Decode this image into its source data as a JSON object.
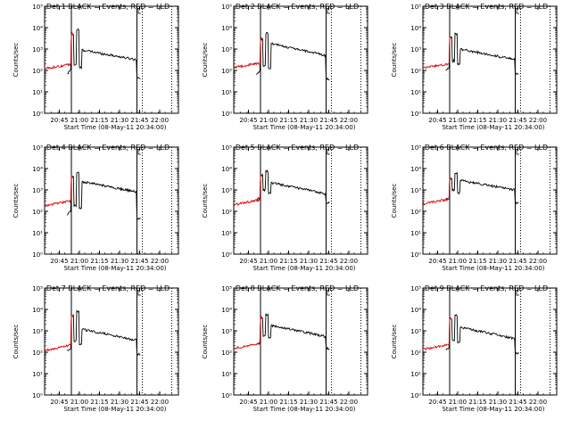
{
  "chart_data": [
    {
      "type": "line",
      "title": "Det 1 BLACK = Events, RED = LLD",
      "xlabel": "Start Time (08-May-11 20:34:00)",
      "ylabel": "Counts/sec",
      "yscale": "log",
      "ylim": [
        1,
        100000
      ],
      "xticks": [
        "20:45",
        "21:00",
        "21:15",
        "21:30",
        "21:45",
        "22:00"
      ],
      "yticks": [
        "10⁰",
        "10¹",
        "10²",
        "10³",
        "10⁴",
        "10⁵"
      ],
      "series": [
        {
          "name": "Events",
          "color": "#000000",
          "plateau": 900,
          "decay": 0.35,
          "peaks": [
            5000,
            8000
          ],
          "low": 45
        },
        {
          "name": "LLD",
          "color": "#dd0000",
          "plateau": 1100,
          "decay": 0.35,
          "peaks": [
            5000,
            8000
          ],
          "pre": [
            120,
            200
          ],
          "post": 180
        }
      ]
    },
    {
      "type": "line",
      "title": "Det 2 BLACK = Events, RED = LLD",
      "xlabel": "Start Time (08-May-11 20:34:00)",
      "ylabel": "Counts/sec",
      "yscale": "log",
      "ylim": [
        1,
        100000
      ],
      "xticks": [
        "20:45",
        "21:00",
        "21:15",
        "21:30",
        "21:45",
        "22:00"
      ],
      "yticks": [
        "10⁰",
        "10¹",
        "10²",
        "10³",
        "10⁴",
        "10⁵"
      ],
      "series": [
        {
          "name": "Events",
          "color": "#000000",
          "plateau": 1800,
          "decay": 0.28,
          "peaks": [
            3000,
            5500
          ],
          "low": 40
        },
        {
          "name": "LLD",
          "color": "#dd0000",
          "plateau": 2000,
          "decay": 0.25,
          "peaks": [
            3000,
            5500
          ],
          "pre": [
            140,
            220
          ],
          "post": 180
        }
      ]
    },
    {
      "type": "line",
      "title": "Det 3 BLACK = Events, RED = LLD",
      "xlabel": "Start Time (08-May-11 20:34:00)",
      "ylabel": "Counts/sec",
      "yscale": "log",
      "ylim": [
        1,
        100000
      ],
      "xticks": [
        "20:45",
        "21:00",
        "21:15",
        "21:30",
        "21:45",
        "22:00"
      ],
      "yticks": [
        "10⁰",
        "10¹",
        "10²",
        "10³",
        "10⁴",
        "10⁵"
      ],
      "series": [
        {
          "name": "Events",
          "color": "#000000",
          "plateau": 1000,
          "decay": 0.32,
          "peaks": [
            3500,
            5000
          ],
          "low": 70
        },
        {
          "name": "LLD",
          "color": "#dd0000",
          "plateau": 1200,
          "decay": 0.3,
          "peaks": [
            3500,
            5000
          ],
          "pre": [
            130,
            210
          ],
          "post": 220
        }
      ]
    },
    {
      "type": "line",
      "title": "Det 4 BLACK = Events, RED = LLD",
      "xlabel": "Start Time (08-May-11 20:34:00)",
      "ylabel": "Counts/sec",
      "yscale": "log",
      "ylim": [
        1,
        100000
      ],
      "xticks": [
        "20:45",
        "21:00",
        "21:15",
        "21:30",
        "21:45",
        "22:00"
      ],
      "yticks": [
        "10⁰",
        "10¹",
        "10²",
        "10³",
        "10⁴",
        "10⁵"
      ],
      "series": [
        {
          "name": "Events",
          "color": "#000000",
          "plateau": 2500,
          "decay": 0.32,
          "peaks": [
            4000,
            7000
          ],
          "low": 45
        },
        {
          "name": "LLD",
          "color": "#dd0000",
          "plateau": 2800,
          "decay": 0.3,
          "peaks": [
            4000,
            7000
          ],
          "pre": [
            180,
            320
          ],
          "post": 180
        }
      ]
    },
    {
      "type": "line",
      "title": "Det 5 BLACK = Events, RED = LLD",
      "xlabel": "Start Time (08-May-11 20:34:00)",
      "ylabel": "Counts/sec",
      "yscale": "log",
      "ylim": [
        1,
        100000
      ],
      "xticks": [
        "20:45",
        "21:00",
        "21:15",
        "21:30",
        "21:45",
        "22:00"
      ],
      "yticks": [
        "10⁰",
        "10¹",
        "10²",
        "10³",
        "10⁴",
        "10⁵"
      ],
      "series": [
        {
          "name": "Events",
          "color": "#000000",
          "plateau": 2200,
          "decay": 0.3,
          "peaks": [
            5000,
            7500
          ],
          "low": 250
        },
        {
          "name": "LLD",
          "color": "#dd0000",
          "plateau": 2500,
          "decay": 0.28,
          "peaks": [
            5000,
            7500
          ],
          "pre": [
            200,
            350
          ],
          "post": 250
        }
      ]
    },
    {
      "type": "line",
      "title": "Det 6 BLACK = Events, RED = LLD",
      "xlabel": "Start Time (08-May-11 20:34:00)",
      "ylabel": "Counts/sec",
      "yscale": "log",
      "ylim": [
        1,
        100000
      ],
      "xticks": [
        "20:45",
        "21:00",
        "21:15",
        "21:30",
        "21:45",
        "22:00"
      ],
      "yticks": [
        "10⁰",
        "10¹",
        "10²",
        "10³",
        "10⁴",
        "10⁵"
      ],
      "series": [
        {
          "name": "Events",
          "color": "#000000",
          "plateau": 2800,
          "decay": 0.35,
          "peaks": [
            3500,
            6000
          ],
          "low": 250
        },
        {
          "name": "LLD",
          "color": "#dd0000",
          "plateau": 3200,
          "decay": 0.3,
          "peaks": [
            3500,
            6000
          ],
          "pre": [
            220,
            380
          ],
          "post": 320
        }
      ]
    },
    {
      "type": "line",
      "title": "Det 7 BLACK = Events, RED = LLD",
      "xlabel": "Start Time (08-May-11 20:34:00)",
      "ylabel": "Counts/sec",
      "yscale": "log",
      "ylim": [
        1,
        100000
      ],
      "xticks": [
        "20:45",
        "21:00",
        "21:15",
        "21:30",
        "21:45",
        "22:00"
      ],
      "yticks": [
        "10⁰",
        "10¹",
        "10²",
        "10³",
        "10⁴",
        "10⁵"
      ],
      "series": [
        {
          "name": "Events",
          "color": "#000000",
          "plateau": 1200,
          "decay": 0.3,
          "peaks": [
            5000,
            8000
          ],
          "low": 80
        },
        {
          "name": "LLD",
          "color": "#dd0000",
          "plateau": 1300,
          "decay": 0.3,
          "peaks": [
            5000,
            8000
          ],
          "pre": [
            120,
            220
          ],
          "post": 150
        }
      ]
    },
    {
      "type": "line",
      "title": "Det 8 BLACK = Events, RED = LLD",
      "xlabel": "Start Time (08-May-11 20:34:00)",
      "ylabel": "Counts/sec",
      "yscale": "log",
      "ylim": [
        1,
        100000
      ],
      "xticks": [
        "20:45",
        "21:00",
        "21:15",
        "21:30",
        "21:45",
        "22:00"
      ],
      "yticks": [
        "10⁰",
        "10¹",
        "10²",
        "10³",
        "10⁴",
        "10⁵"
      ],
      "series": [
        {
          "name": "Events",
          "color": "#000000",
          "plateau": 1800,
          "decay": 0.3,
          "peaks": [
            4000,
            6000
          ],
          "low": 150
        },
        {
          "name": "LLD",
          "color": "#dd0000",
          "plateau": 2000,
          "decay": 0.28,
          "peaks": [
            4000,
            6000
          ],
          "pre": [
            150,
            260
          ],
          "post": 200
        }
      ]
    },
    {
      "type": "line",
      "title": "Det 9 BLACK = Events, RED = LLD",
      "xlabel": "Start Time (08-May-11 20:34:00)",
      "ylabel": "Counts/sec",
      "yscale": "log",
      "ylim": [
        1,
        100000
      ],
      "xticks": [
        "20:45",
        "21:00",
        "21:15",
        "21:30",
        "21:45",
        "22:00"
      ],
      "yticks": [
        "10⁰",
        "10¹",
        "10²",
        "10³",
        "10⁴",
        "10⁵"
      ],
      "series": [
        {
          "name": "Events",
          "color": "#000000",
          "plateau": 1500,
          "decay": 0.28,
          "peaks": [
            3500,
            5500
          ],
          "low": 90
        },
        {
          "name": "LLD",
          "color": "#dd0000",
          "plateau": 1700,
          "decay": 0.25,
          "peaks": [
            3500,
            5500
          ],
          "pre": [
            140,
            230
          ],
          "post": 170
        }
      ]
    }
  ]
}
